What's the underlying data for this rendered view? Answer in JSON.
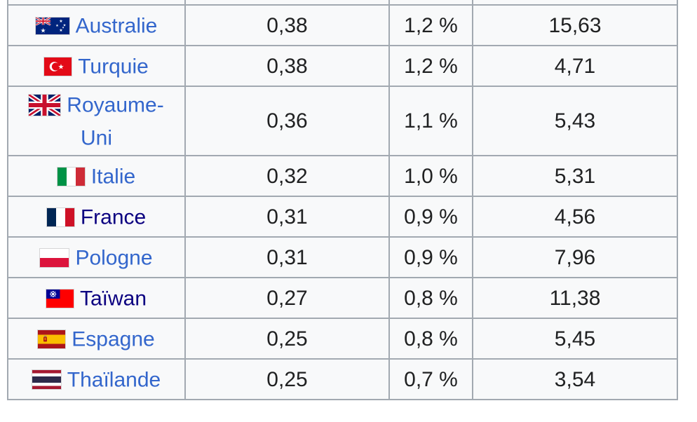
{
  "page": {
    "background_color": "#ffffff"
  },
  "table": {
    "cell_background": "#f8f9fa",
    "border_color": "#a2a9b1",
    "text_color": "#202122",
    "link_color": "#3366cc",
    "visited_link_color": "#0b0080",
    "rows": [
      {
        "country": "Australie",
        "flag_icon": "flag-australia-icon",
        "value": "0,38",
        "percent": "1,2 %",
        "score": "15,63",
        "visited": false
      },
      {
        "country": "Turquie",
        "flag_icon": "flag-turkey-icon",
        "value": "0,38",
        "percent": "1,2 %",
        "score": "4,71",
        "visited": false
      },
      {
        "country": "Royaume-Uni",
        "flag_icon": "flag-united-kingdom-icon",
        "value": "0,36",
        "percent": "1,1 %",
        "score": "5,43",
        "visited": false
      },
      {
        "country": "Italie",
        "flag_icon": "flag-italy-icon",
        "value": "0,32",
        "percent": "1,0 %",
        "score": "5,31",
        "visited": false
      },
      {
        "country": "France",
        "flag_icon": "flag-france-icon",
        "value": "0,31",
        "percent": "0,9 %",
        "score": "4,56",
        "visited": true
      },
      {
        "country": "Pologne",
        "flag_icon": "flag-poland-icon",
        "value": "0,31",
        "percent": "0,9 %",
        "score": "7,96",
        "visited": false
      },
      {
        "country": "Taïwan",
        "flag_icon": "flag-taiwan-icon",
        "value": "0,27",
        "percent": "0,8 %",
        "score": "11,38",
        "visited": true
      },
      {
        "country": "Espagne",
        "flag_icon": "flag-spain-icon",
        "value": "0,25",
        "percent": "0,8 %",
        "score": "5,45",
        "visited": false
      },
      {
        "country": "Thaïlande",
        "flag_icon": "flag-thailand-icon",
        "value": "0,25",
        "percent": "0,7 %",
        "score": "3,54",
        "visited": false
      }
    ]
  }
}
